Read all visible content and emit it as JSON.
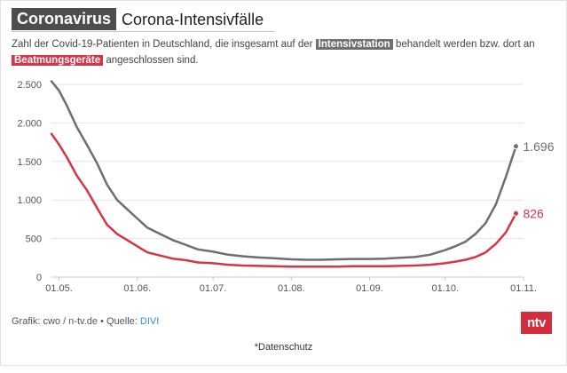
{
  "header": {
    "badge": "Coronavirus",
    "title": "Corona-Intensivfälle",
    "subtitle_part1": "Zahl der Covid-19-Patienten in Deutschland, die insgesamt auf der ",
    "subtitle_hl1": "Intensivstation",
    "subtitle_part2": " behandelt werden bzw. dort an ",
    "subtitle_hl2": "Beatmungsgeräte",
    "subtitle_part3": " angeschlossen sind."
  },
  "footer": {
    "credit": "Grafik: cwo / n-tv.de • Quelle: ",
    "source_link": "DIVI",
    "logo": "ntv",
    "privacy": "*Datenschutz"
  },
  "colors": {
    "series_icu": "#6e6e6e",
    "series_vent": "#d63447",
    "grid": "#e6e6e6",
    "accent_logo": "#d42e3c"
  },
  "chart_data": {
    "type": "line",
    "title": "Corona-Intensivfälle",
    "xlabel": "",
    "ylabel": "",
    "x_tick_labels": [
      "01.05.",
      "01.06.",
      "01.07.",
      "01.08.",
      "01.09.",
      "01.10.",
      "01.11."
    ],
    "y_tick_labels": [
      "0",
      "500",
      "1.000",
      "1.500",
      "2.000",
      "2.500"
    ],
    "y_ticks": [
      0,
      500,
      1000,
      1500,
      2000,
      2500
    ],
    "ylim": [
      0,
      2500
    ],
    "x_range": [
      "2020-04-28",
      "2020-11-01"
    ],
    "grid": true,
    "x": [
      "2020-04-28",
      "2020-05-01",
      "2020-05-04",
      "2020-05-08",
      "2020-05-12",
      "2020-05-16",
      "2020-05-20",
      "2020-05-24",
      "2020-05-28",
      "2020-06-01",
      "2020-06-05",
      "2020-06-10",
      "2020-06-15",
      "2020-06-20",
      "2020-06-25",
      "2020-07-01",
      "2020-07-07",
      "2020-07-13",
      "2020-07-19",
      "2020-07-25",
      "2020-08-01",
      "2020-08-07",
      "2020-08-13",
      "2020-08-19",
      "2020-08-25",
      "2020-09-01",
      "2020-09-07",
      "2020-09-13",
      "2020-09-19",
      "2020-09-25",
      "2020-10-01",
      "2020-10-05",
      "2020-10-09",
      "2020-10-13",
      "2020-10-17",
      "2020-10-21",
      "2020-10-25",
      "2020-10-29"
    ],
    "series": [
      {
        "name": "Intensivstation",
        "color": "#6e6e6e",
        "end_label": "1.696",
        "values": [
          2540,
          2420,
          2230,
          1950,
          1720,
          1480,
          1200,
          1000,
          880,
          760,
          640,
          560,
          480,
          420,
          360,
          330,
          290,
          270,
          255,
          245,
          230,
          225,
          225,
          230,
          235,
          235,
          240,
          250,
          260,
          290,
          350,
          400,
          460,
          560,
          700,
          940,
          1300,
          1696
        ]
      },
      {
        "name": "Beatmungsgeräte",
        "color": "#d63447",
        "end_label": "826",
        "values": [
          1860,
          1720,
          1560,
          1320,
          1130,
          900,
          680,
          560,
          480,
          400,
          320,
          280,
          240,
          220,
          190,
          180,
          160,
          150,
          145,
          140,
          135,
          135,
          135,
          135,
          140,
          140,
          140,
          145,
          150,
          160,
          180,
          200,
          225,
          260,
          320,
          430,
          580,
          826
        ]
      }
    ]
  }
}
